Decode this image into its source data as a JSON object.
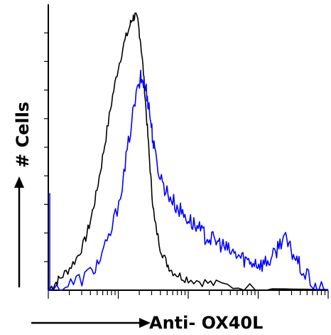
{
  "chart_data": {
    "type": "line",
    "xlabel": "Anti- OX40L",
    "ylabel": "# Cells",
    "x_scale": "log",
    "xlim": [
      0,
      100
    ],
    "ylim": [
      0,
      100
    ],
    "grid": false,
    "legend": "none",
    "series": [
      {
        "color": "#000000",
        "x": [
          0,
          2,
          4,
          7,
          10,
          13,
          15,
          17,
          19,
          21,
          23,
          25,
          27,
          29,
          30,
          31,
          32,
          33,
          34,
          35,
          36,
          37,
          38,
          40,
          42,
          44,
          47,
          50,
          55,
          60,
          70,
          80,
          100
        ],
        "y": [
          0,
          2,
          4,
          7,
          11,
          17,
          24,
          33,
          44,
          56,
          68,
          78,
          86,
          92,
          95,
          96,
          94,
          87,
          76,
          62,
          48,
          34,
          24,
          15,
          10,
          7,
          5,
          4,
          3,
          2,
          1,
          0.5,
          0.2
        ]
      },
      {
        "color": "#0000ff",
        "x": [
          0,
          5,
          10,
          15,
          18,
          21,
          24,
          27,
          29,
          31,
          33,
          34,
          35,
          36,
          37,
          38,
          40,
          42,
          44,
          46,
          48,
          50,
          52,
          54,
          56,
          58,
          60,
          62,
          64,
          66,
          68,
          70,
          72,
          74,
          76,
          78,
          80,
          82,
          84,
          86,
          88,
          90,
          93,
          96,
          100
        ],
        "y": [
          0,
          1,
          3,
          6,
          10,
          16,
          26,
          40,
          54,
          66,
          74,
          73,
          70,
          64,
          56,
          48,
          40,
          35,
          32,
          29,
          27,
          25,
          23,
          21,
          19,
          18,
          17,
          16,
          14,
          13,
          12,
          11,
          10,
          10,
          9,
          10,
          11,
          15,
          19,
          15,
          12,
          8,
          4,
          1,
          0
        ]
      }
    ]
  }
}
